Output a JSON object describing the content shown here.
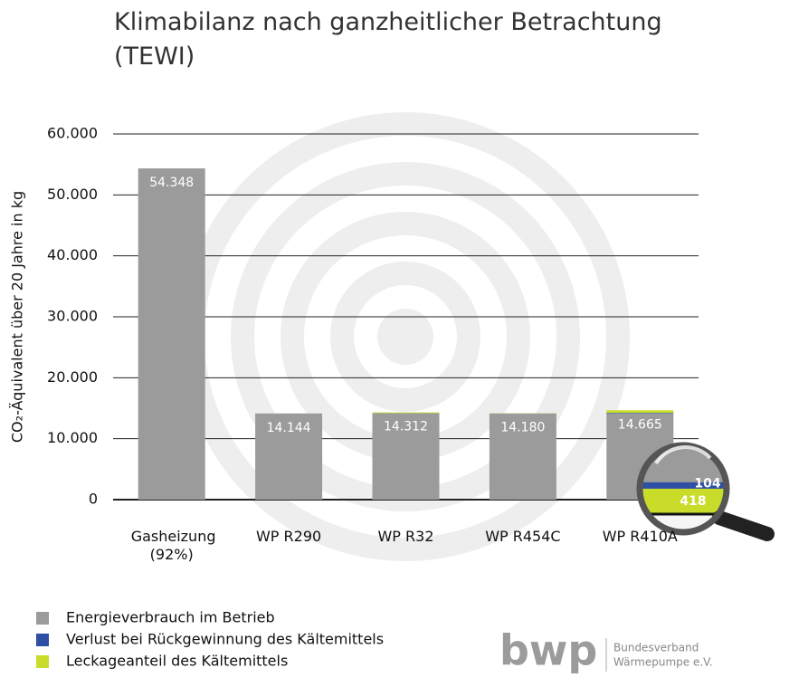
{
  "chart_data": {
    "type": "stacked_bar",
    "title": "Klimabilanz nach ganzheitlicher Betrachtung (TEWI)",
    "y_label": "CO₂-Äquivalent über 20 Jahre in kg",
    "categories": [
      "Gasheizung (92%)",
      "WP R290",
      "WP R32",
      "WP R454C",
      "WP R410A"
    ],
    "series": [
      {
        "name": "Energieverbrauch im Betrieb",
        "color": "#9b9b9b",
        "values": [
          54348,
          14143,
          14143,
          14143,
          14143
        ]
      },
      {
        "name": "Verlust bei Rückgewinnung des Kältemittels",
        "color": "#2e4fa3",
        "values": [
          0,
          0,
          34,
          7,
          104
        ]
      },
      {
        "name": "Leckageanteil des Kältemittels",
        "color": "#c9dc2a",
        "values": [
          0,
          1,
          135,
          30,
          418
        ]
      }
    ],
    "totals": {
      "values": [
        54348,
        14144,
        14312,
        14180,
        14665
      ],
      "value_labels": [
        "54.348",
        "14.144",
        "14.312",
        "14.180",
        "14.665"
      ]
    },
    "ylim": [
      0,
      60000
    ],
    "yticks": [
      0,
      {
        "value": 10000,
        "label": "10.000"
      },
      {
        "value": 20000,
        "label": "20.000"
      },
      {
        "value": 30000,
        "label": "30.000"
      },
      {
        "value": 40000,
        "label": "40.000"
      },
      {
        "value": 50000,
        "label": "50.000"
      },
      {
        "value": 60000,
        "label": "60.000"
      }
    ],
    "grid": true
  },
  "logo": {
    "mark": "bwp",
    "line1": "Bundesverband",
    "line2": "Wärmepumpe e.V."
  }
}
